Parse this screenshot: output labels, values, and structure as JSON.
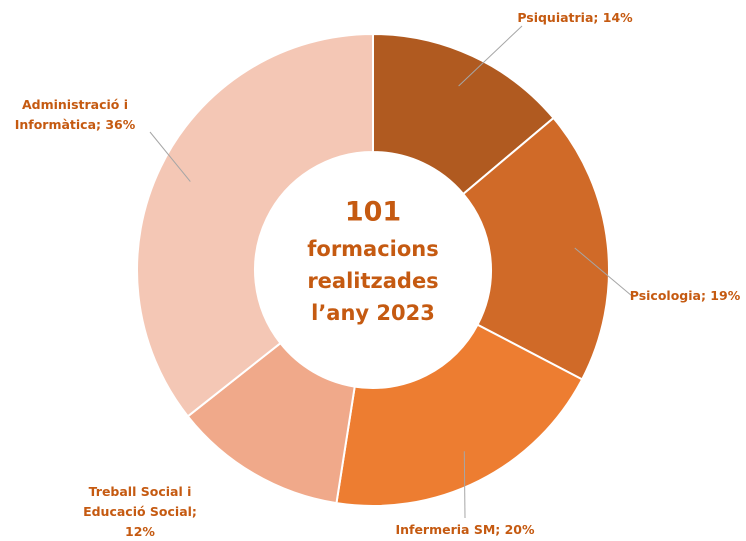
{
  "chart_data": {
    "type": "donut",
    "categories": [
      "Psiquiatria",
      "Psicologia",
      "Infermeria SM",
      "Treball Social i Educació Social",
      "Administració i Informàtica"
    ],
    "values": [
      14,
      19,
      20,
      12,
      36
    ],
    "value_labels": [
      "Psiquiatria; 14%",
      "Psicologia; 19%",
      "Infermeria SM; 20%",
      "Treball Social i\nEducació Social;\n12%",
      "Administració i\nInformàtica; 36%"
    ],
    "colors": [
      "#b05a20",
      "#d06a28",
      "#ed7d31",
      "#f0a98a",
      "#f4c7b5"
    ],
    "center_text": [
      "101",
      "formacions",
      "realitzades",
      "l’any 2023"
    ]
  }
}
